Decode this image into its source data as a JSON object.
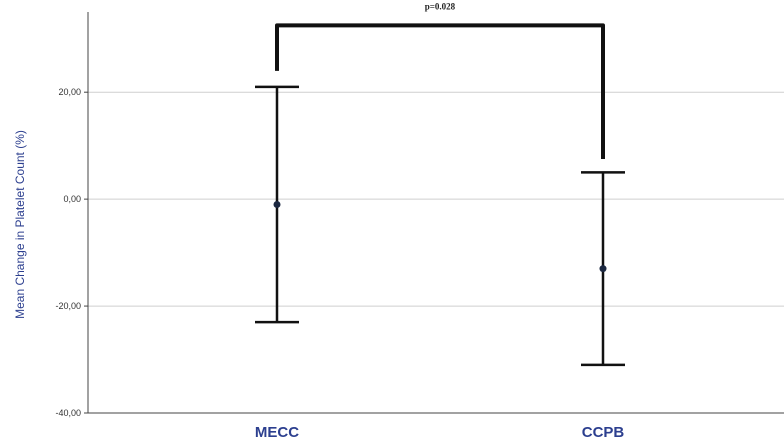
{
  "chart_data": {
    "type": "errorbar",
    "ylabel": "Mean Change in Platelet Count (%)",
    "ylim": [
      -40,
      35
    ],
    "yticks": [
      -40,
      -20,
      0,
      20
    ],
    "ytick_labels": [
      "-40,00",
      "-20,00",
      "0,00",
      "20,00"
    ],
    "grid": true,
    "categories": [
      "MECC",
      "CCPB"
    ],
    "means": [
      -1,
      -13
    ],
    "lower": [
      -23,
      -31
    ],
    "upper": [
      21,
      5
    ],
    "colors": {
      "axis_text": "#2c3f8f",
      "marks": "#111111",
      "grid": "#cfcfcf"
    },
    "annotation": {
      "text": "p=0.028",
      "bracket_level": 32.5,
      "bracket_left_end": 24,
      "bracket_right_end": 7.5
    }
  }
}
